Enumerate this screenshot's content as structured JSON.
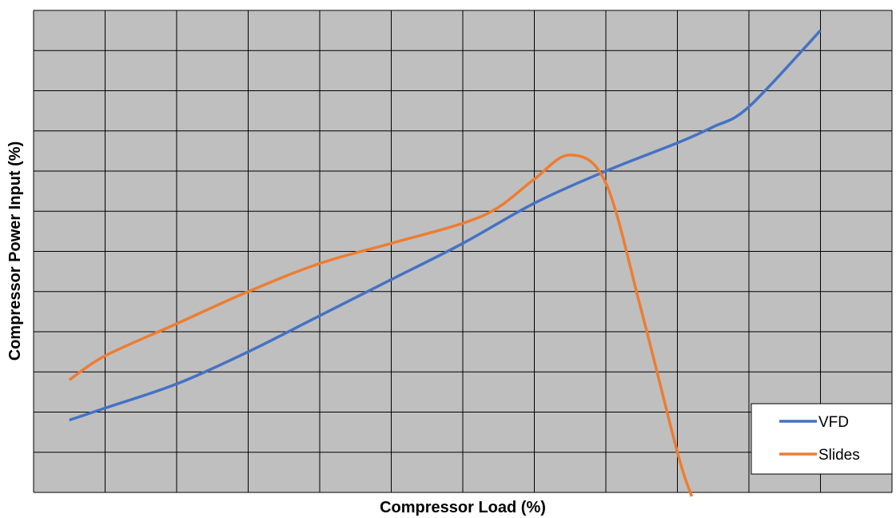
{
  "chart_data": {
    "type": "line",
    "title": "",
    "xlabel": "Compressor Load (%)",
    "ylabel": "Compressor Power Input (%)",
    "xlim": [
      0,
      120
    ],
    "ylim": [
      0,
      120
    ],
    "grid": true,
    "plot_background": "#bfbfbf",
    "gridline_color": "#000000",
    "legend_position": "bottom-right",
    "series": [
      {
        "name": "VFD",
        "color": "#4472c4",
        "x": [
          5,
          10,
          20,
          30,
          40,
          50,
          60,
          70,
          80,
          90,
          95,
          100,
          110
        ],
        "y": [
          18,
          21,
          27,
          35,
          44,
          53,
          62,
          72,
          80,
          87,
          91,
          96,
          115
        ]
      },
      {
        "name": "Slides",
        "color": "#ed7d31",
        "x": [
          5,
          10,
          20,
          30,
          40,
          50,
          60,
          65,
          70,
          75,
          80,
          85,
          90,
          92
        ],
        "y": [
          28,
          34,
          42,
          50,
          57,
          62,
          67,
          71,
          78,
          84,
          77,
          45,
          10,
          -1
        ]
      }
    ]
  }
}
